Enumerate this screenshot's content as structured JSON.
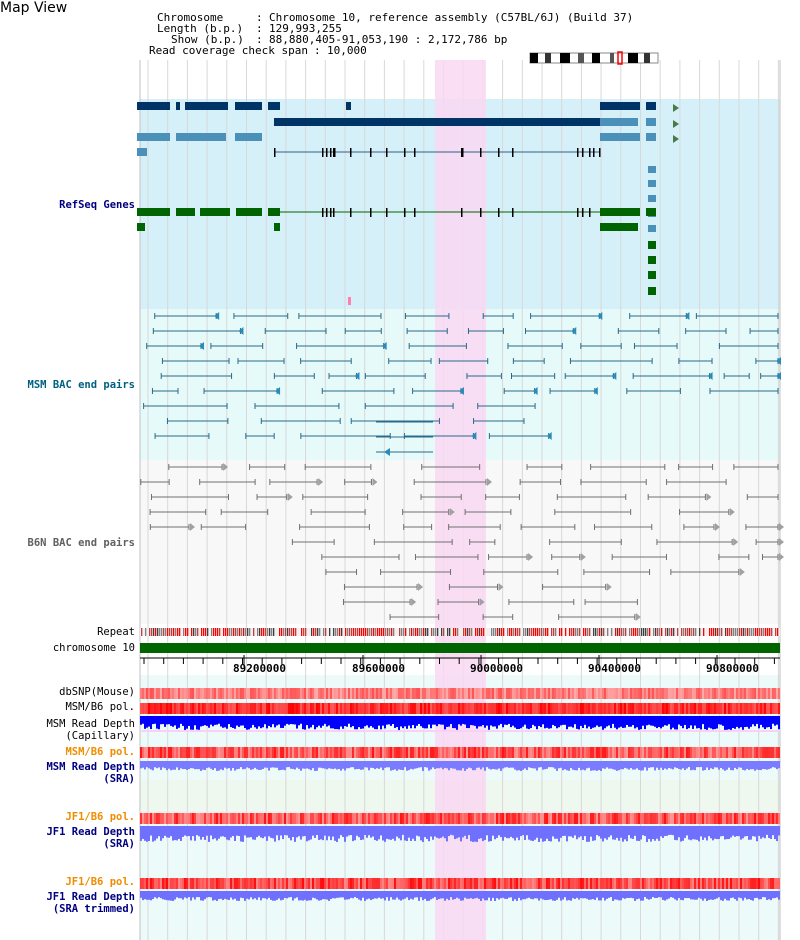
{
  "title": "Map View",
  "info": {
    "chromosome_label": "Chromosome",
    "chromosome_value": "Chromosome 10, reference assembly (C57BL/6J) (Build 37)",
    "length_label": "Length (b.p.)",
    "length_value": "129,993,255",
    "show_label": "Show (b.p.)",
    "show_value": "88,880,405-91,053,190 : 2,172,786 bp",
    "span_label": "Read coverage check span",
    "span_value": "10,000"
  },
  "tracks": {
    "refseq": "RefSeq Genes",
    "msm_bac": "MSM BAC end pairs",
    "b6n_bac": "B6N BAC end pairs",
    "repeat": "Repeat",
    "chromosome": "chromosome 10",
    "dbsnp": "dbSNP(Mouse)",
    "msm_pol": "MSM/B6 pol.",
    "msm_depth_cap1": "MSM Read Depth",
    "msm_depth_cap2": "(Capillary)",
    "msm_pol2": "MSM/B6 pol.",
    "msm_depth_sra1": "MSM Read Depth",
    "msm_depth_sra2": "(SRA)",
    "jf1_pol": "JF1/B6 pol.",
    "jf1_depth1": "JF1 Read Depth",
    "jf1_depth2": "(SRA)",
    "jf1_pol2": "JF1/B6 pol.",
    "jf1_trim1": "JF1 Read Depth",
    "jf1_trim2": "(SRA trimmed)"
  },
  "axis": {
    "ticks": [
      "89200000",
      "89600000",
      "90000000",
      "90400000",
      "90800000"
    ]
  },
  "colors": {
    "highlight": "#f9d8f2",
    "refseq_bg": "#d6f0fa",
    "msm_bg": "#e6fafa",
    "gene_navy": "#003366",
    "gene_blue": "#4a90b8",
    "gene_green": "#006400",
    "chrom_green": "#006400",
    "depth_blue": "#0000ff",
    "depth_light": "#8080ff",
    "snp_red": "#ff0000"
  }
}
